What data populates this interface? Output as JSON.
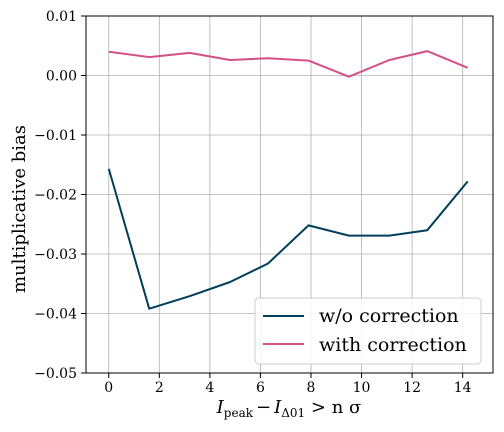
{
  "chart_data": {
    "type": "line",
    "xlabel": "I_peak − I_Δ01 > n σ",
    "xlabel_parts": {
      "main1": "I",
      "sub1": "peak",
      "minus": "−",
      "main2": "I",
      "sub2": "Δ01",
      "rest": " > n σ"
    },
    "ylabel": "multiplicative bias",
    "xlim": [
      -0.9,
      15.2
    ],
    "ylim": [
      -0.05,
      0.01
    ],
    "grid": true,
    "legend_position": "lower-right",
    "x_ticks": [
      0,
      2,
      4,
      6,
      8,
      10,
      12,
      14
    ],
    "x_tick_labels": [
      "0",
      "2",
      "4",
      "6",
      "8",
      "10",
      "12",
      "14"
    ],
    "y_ticks": [
      0.01,
      0.0,
      -0.01,
      -0.02,
      -0.03,
      -0.04,
      -0.05
    ],
    "y_tick_labels": [
      "0.01",
      "0.00",
      "−0.01",
      "−0.02",
      "−0.03",
      "−0.04",
      "−0.05"
    ],
    "x": [
      0,
      1.6,
      3.2,
      4.8,
      6.3,
      7.9,
      9.5,
      11.1,
      12.6,
      14.2
    ],
    "series": [
      {
        "name": "w/o correction",
        "color": "#003f5c",
        "values": [
          -0.0157,
          -0.0392,
          -0.0371,
          -0.0347,
          -0.0316,
          -0.0252,
          -0.0269,
          -0.0269,
          -0.026,
          -0.0178
        ]
      },
      {
        "name": "with correction",
        "color": "#d45087",
        "values": [
          0.004,
          0.0031,
          0.0038,
          0.0026,
          0.0029,
          0.0025,
          -0.0002,
          0.0026,
          0.0041,
          0.0013
        ]
      }
    ]
  }
}
